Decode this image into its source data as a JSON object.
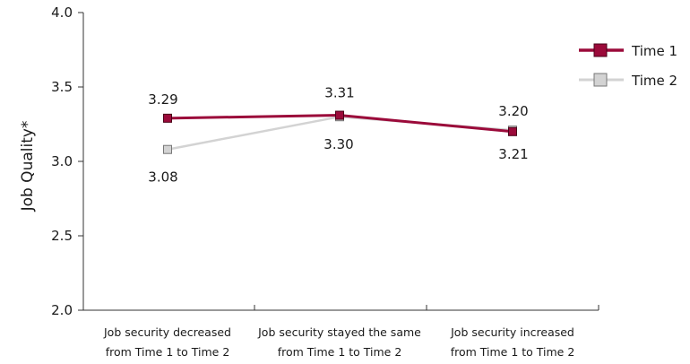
{
  "chart_data": {
    "type": "line",
    "ylabel": "Job Quality*",
    "ylim": [
      2.0,
      4.0
    ],
    "yticks": [
      "2.0",
      "2.5",
      "3.0",
      "3.5",
      "4.0"
    ],
    "categories": [
      [
        "Job security decreased",
        "from Time 1 to Time 2"
      ],
      [
        "Job security stayed the same",
        "from Time 1 to Time 2"
      ],
      [
        "Job security increased",
        "from Time 1 to Time 2"
      ]
    ],
    "series": [
      {
        "name": "Time 1",
        "values": [
          3.29,
          3.31,
          3.2
        ],
        "labels": [
          "3.29",
          "3.31",
          "3.20"
        ],
        "color": "#9b0a3a"
      },
      {
        "name": "Time 2",
        "values": [
          3.08,
          3.3,
          3.21
        ],
        "labels": [
          "3.08",
          "3.30",
          "3.21"
        ],
        "color": "#d3d3d3"
      }
    ],
    "legend_position": "top-right",
    "grid": false
  }
}
